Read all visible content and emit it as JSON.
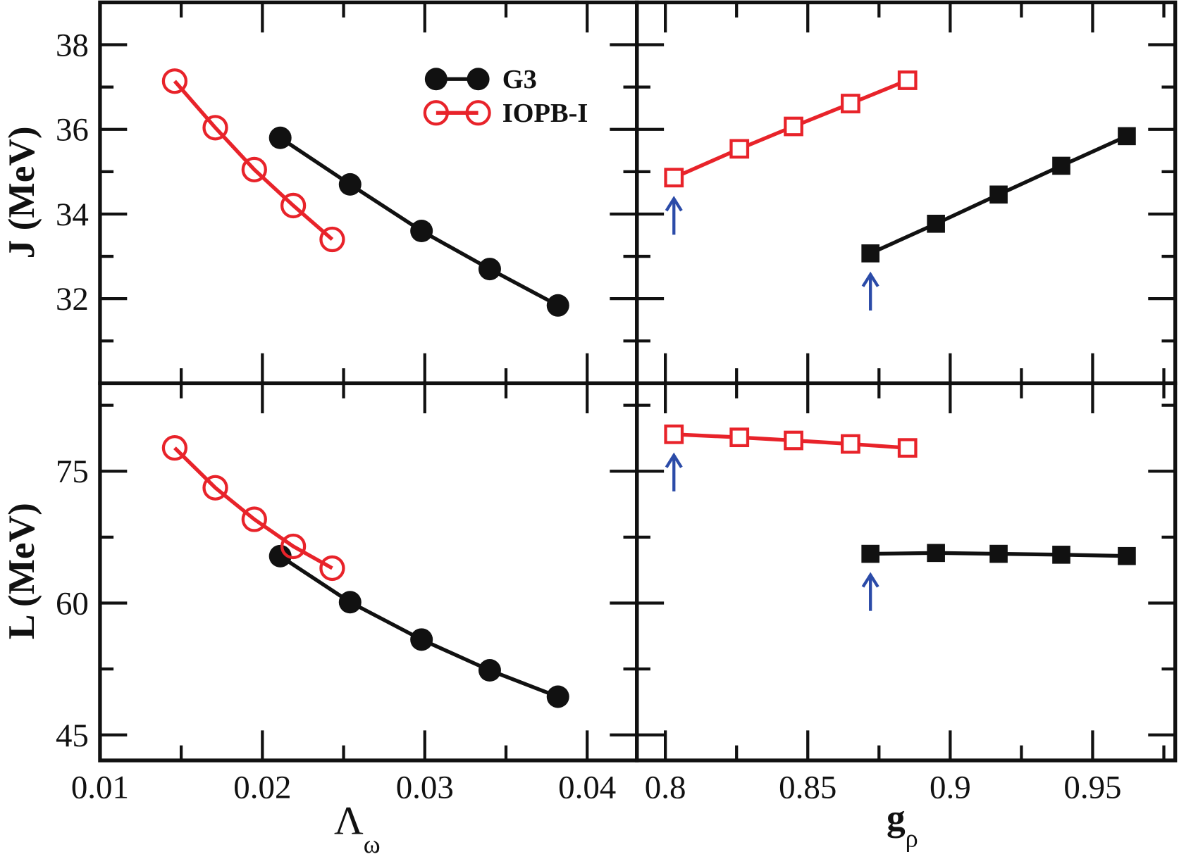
{
  "chart_data": [
    {
      "type": "line",
      "panel": "top-left",
      "xlabel": "Λ",
      "xlabel_sub": "ω",
      "ylabel": "J (MeV)",
      "xlim": [
        0.01,
        0.04
      ],
      "ylim": [
        30,
        39
      ],
      "xticks": [
        "0.01",
        "0.02",
        "0.03",
        "0.04"
      ],
      "yticks": [
        "32",
        "34",
        "36",
        "38"
      ],
      "series": [
        {
          "name": "G3",
          "x": [
            0.0211,
            0.0254,
            0.0298,
            0.034,
            0.0382
          ],
          "y": [
            35.8,
            34.7,
            33.6,
            32.7,
            31.84
          ]
        },
        {
          "name": "IOPB-I",
          "x": [
            0.0146,
            0.0171,
            0.0195,
            0.0219,
            0.0243
          ],
          "y": [
            37.14,
            36.04,
            35.05,
            34.2,
            33.4
          ]
        }
      ]
    },
    {
      "type": "line",
      "panel": "top-right",
      "xlabel": "g",
      "xlabel_sub": "ρ",
      "ylabel": "J (MeV)",
      "xlim": [
        0.79,
        0.979
      ],
      "ylim": [
        30,
        39
      ],
      "xticks": [
        "0.8",
        "0.85",
        "0.9",
        "0.95"
      ],
      "series": [
        {
          "name": "G3",
          "x": [
            0.872,
            0.895,
            0.917,
            0.939,
            0.962
          ],
          "y": [
            33.07,
            33.77,
            34.46,
            35.14,
            35.84
          ]
        },
        {
          "name": "IOPB-I",
          "x": [
            0.803,
            0.826,
            0.845,
            0.865,
            0.885
          ],
          "y": [
            34.86,
            35.54,
            36.07,
            36.61,
            37.16
          ]
        }
      ],
      "annotations": [
        {
          "type": "arrow",
          "x": 0.803,
          "series": "IOPB-I"
        },
        {
          "type": "arrow",
          "x": 0.872,
          "series": "G3"
        }
      ]
    },
    {
      "type": "line",
      "panel": "bottom-left",
      "xlabel": "Λ",
      "xlabel_sub": "ω",
      "ylabel": "L (MeV)",
      "xlim": [
        0.01,
        0.04
      ],
      "ylim": [
        42.1,
        85
      ],
      "xticks": [
        "0.01",
        "0.02",
        "0.03",
        "0.04"
      ],
      "yticks": [
        "45",
        "60",
        "75"
      ],
      "series": [
        {
          "name": "G3",
          "x": [
            0.0211,
            0.0254,
            0.0298,
            0.034,
            0.0382
          ],
          "y": [
            65.34,
            60.1,
            55.85,
            52.35,
            49.35
          ]
        },
        {
          "name": "IOPB-I",
          "x": [
            0.0146,
            0.0171,
            0.0195,
            0.0219,
            0.0243
          ],
          "y": [
            77.65,
            73.12,
            69.53,
            66.45,
            63.97
          ]
        }
      ]
    },
    {
      "type": "line",
      "panel": "bottom-right",
      "xlabel": "g",
      "xlabel_sub": "ρ",
      "ylabel": "L (MeV)",
      "xlim": [
        0.79,
        0.979
      ],
      "ylim": [
        42.1,
        85
      ],
      "xticks": [
        "0.8",
        "0.85",
        "0.9",
        "0.95"
      ],
      "series": [
        {
          "name": "G3",
          "x": [
            0.872,
            0.895,
            0.917,
            0.939,
            0.962
          ],
          "y": [
            65.6,
            65.7,
            65.6,
            65.5,
            65.35
          ]
        },
        {
          "name": "IOPB-I",
          "x": [
            0.803,
            0.826,
            0.845,
            0.865,
            0.885
          ],
          "y": [
            79.2,
            78.85,
            78.5,
            78.1,
            77.65
          ]
        }
      ],
      "annotations": [
        {
          "type": "arrow",
          "x": 0.803,
          "series": "IOPB-I"
        },
        {
          "type": "arrow",
          "x": 0.872,
          "series": "G3"
        }
      ]
    }
  ],
  "legend": {
    "placement": "top-left panel, top-right",
    "entries": [
      "G3",
      "IOPB-I"
    ]
  },
  "colors": {
    "G3": "#111111",
    "IOPB-I": "#e8232a",
    "arrow": "#2b4ba8"
  }
}
